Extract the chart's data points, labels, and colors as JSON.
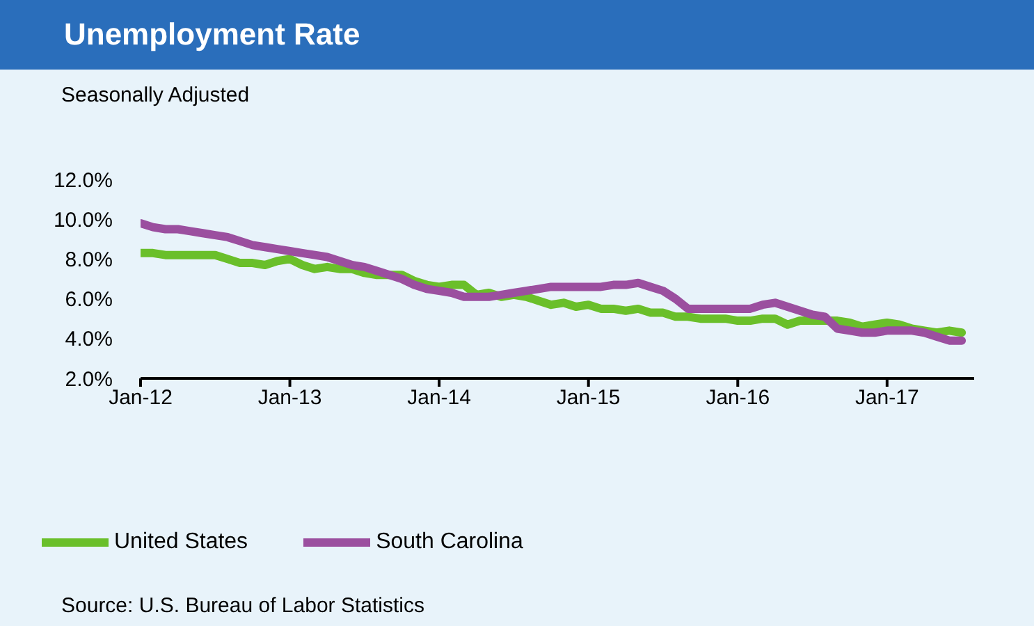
{
  "chart_data": {
    "type": "line",
    "title": "Unemployment Rate",
    "subtitle": "Seasonally Adjusted",
    "annotations": [
      "Source: U.S. Bureau of Labor Statistics"
    ],
    "x": [
      "2012-01",
      "2012-02",
      "2012-03",
      "2012-04",
      "2012-05",
      "2012-06",
      "2012-07",
      "2012-08",
      "2012-09",
      "2012-10",
      "2012-11",
      "2012-12",
      "2013-01",
      "2013-02",
      "2013-03",
      "2013-04",
      "2013-05",
      "2013-06",
      "2013-07",
      "2013-08",
      "2013-09",
      "2013-10",
      "2013-11",
      "2013-12",
      "2014-01",
      "2014-02",
      "2014-03",
      "2014-04",
      "2014-05",
      "2014-06",
      "2014-07",
      "2014-08",
      "2014-09",
      "2014-10",
      "2014-11",
      "2014-12",
      "2015-01",
      "2015-02",
      "2015-03",
      "2015-04",
      "2015-05",
      "2015-06",
      "2015-07",
      "2015-08",
      "2015-09",
      "2015-10",
      "2015-11",
      "2015-12",
      "2016-01",
      "2016-02",
      "2016-03",
      "2016-04",
      "2016-05",
      "2016-06",
      "2016-07",
      "2016-08",
      "2016-09",
      "2016-10",
      "2016-11",
      "2016-12",
      "2017-01",
      "2017-02",
      "2017-03",
      "2017-04",
      "2017-05",
      "2017-06",
      "2017-07"
    ],
    "series": [
      {
        "name": "United States",
        "color": "#6abf2a",
        "values": [
          8.3,
          8.3,
          8.2,
          8.2,
          8.2,
          8.2,
          8.2,
          8.0,
          7.8,
          7.8,
          7.7,
          7.9,
          8.0,
          7.7,
          7.5,
          7.6,
          7.5,
          7.5,
          7.3,
          7.2,
          7.2,
          7.2,
          6.9,
          6.7,
          6.6,
          6.7,
          6.7,
          6.2,
          6.3,
          6.1,
          6.2,
          6.1,
          5.9,
          5.7,
          5.8,
          5.6,
          5.7,
          5.5,
          5.5,
          5.4,
          5.5,
          5.3,
          5.3,
          5.1,
          5.1,
          5.0,
          5.0,
          5.0,
          4.9,
          4.9,
          5.0,
          5.0,
          4.7,
          4.9,
          4.9,
          4.9,
          4.9,
          4.8,
          4.6,
          4.7,
          4.8,
          4.7,
          4.5,
          4.4,
          4.3,
          4.4,
          4.3
        ]
      },
      {
        "name": "South Carolina",
        "color": "#9b4f9f",
        "values": [
          9.8,
          9.6,
          9.5,
          9.5,
          9.4,
          9.3,
          9.2,
          9.1,
          8.9,
          8.7,
          8.6,
          8.5,
          8.4,
          8.3,
          8.2,
          8.1,
          7.9,
          7.7,
          7.6,
          7.4,
          7.2,
          7.0,
          6.7,
          6.5,
          6.4,
          6.3,
          6.1,
          6.1,
          6.1,
          6.2,
          6.3,
          6.4,
          6.5,
          6.6,
          6.6,
          6.6,
          6.6,
          6.6,
          6.7,
          6.7,
          6.8,
          6.6,
          6.4,
          6.0,
          5.5,
          5.5,
          5.5,
          5.5,
          5.5,
          5.5,
          5.7,
          5.8,
          5.6,
          5.4,
          5.2,
          5.1,
          4.5,
          4.4,
          4.3,
          4.3,
          4.4,
          4.4,
          4.4,
          4.3,
          4.1,
          3.9,
          3.9
        ]
      }
    ],
    "xlim": [
      "2012-01",
      "2017-08"
    ],
    "xticks": [
      {
        "value": "2012-01",
        "label": "Jan-12"
      },
      {
        "value": "2013-01",
        "label": "Jan-13"
      },
      {
        "value": "2014-01",
        "label": "Jan-14"
      },
      {
        "value": "2015-01",
        "label": "Jan-15"
      },
      {
        "value": "2016-01",
        "label": "Jan-16"
      },
      {
        "value": "2017-01",
        "label": "Jan-17"
      }
    ],
    "ylim": [
      2,
      12
    ],
    "yticks": [
      {
        "value": 2,
        "label": "2.0%"
      },
      {
        "value": 4,
        "label": "4.0%"
      },
      {
        "value": 6,
        "label": "6.0%"
      },
      {
        "value": 8,
        "label": "8.0%"
      },
      {
        "value": 10,
        "label": "10.0%"
      },
      {
        "value": 12,
        "label": "12.0%"
      }
    ],
    "grid": false,
    "legend": "bottom left",
    "marker": "none",
    "line_style": "solid"
  }
}
